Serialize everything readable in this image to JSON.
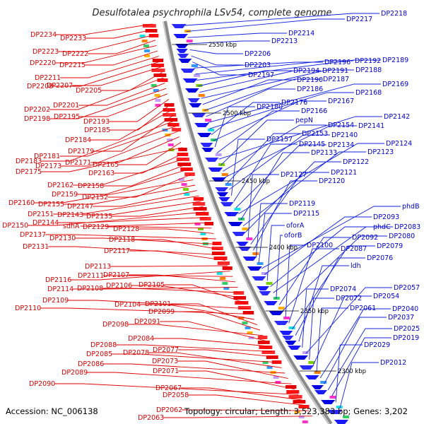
{
  "map": {
    "title": "Desulfotalea psychrophila LSv54, complete genome",
    "accession": "Accession: NC_006138",
    "summary": "Topology: circular; Length: 3,523,383 bp; Genes: 3,202",
    "colors": {
      "forward": "#ff0000",
      "reverse": "#1a1aff",
      "backbone": "#909090",
      "tick": "#2a8a2a"
    },
    "scale_labels": [
      "2550 kbp",
      "2500 kbp",
      "2450 kbp",
      "2400 kbp",
      "2350 kbp",
      "2300 kbp"
    ],
    "left_labels": [
      "DP2234",
      "DP2233",
      "DP2223",
      "DP2222",
      "DP2220",
      "DP2215",
      "DP2211",
      "DP2208",
      "DP2207",
      "DP2205",
      "DP2202",
      "DP2201",
      "DP2198",
      "DP2195",
      "DP2193",
      "DP2185",
      "DP2184",
      "DP2179",
      "DP2183",
      "DP2181",
      "DP2173",
      "DP2171",
      "DP2165",
      "DP2175",
      "DP2163",
      "DP2162",
      "DP2158",
      "DP2159",
      "DP2152",
      "DP2160",
      "DP2155",
      "DP2147",
      "DP2151",
      "DP2143",
      "DP2135",
      "DP2150",
      "DP2144",
      "sdhA",
      "DP2129",
      "DP2128",
      "DP2137",
      "DP2130",
      "DP2118",
      "DP2131",
      "DP2117",
      "DP2113",
      "DP2116",
      "DP2111",
      "DP2107",
      "DP2114",
      "DP2108",
      "DP2106",
      "DP2105",
      "DP2109",
      "DP2110",
      "DP2104",
      "DP2101",
      "DP2099",
      "DP2098",
      "DP2091",
      "DP2084",
      "DP2088",
      "DP2077",
      "DP2085",
      "DP2078",
      "DP2086",
      "DP2073",
      "DP2089",
      "DP2071",
      "DP2090",
      "DP2067",
      "DP2058",
      "DP2062",
      "DP2063"
    ],
    "right_labels": [
      "DP2218",
      "DP2217",
      "DP2214",
      "DP2213",
      "DP2206",
      "DP2203",
      "DP2197",
      "DP2196",
      "DP2192",
      "DP2189",
      "DP2194",
      "DP2191",
      "DP2188",
      "DP2190",
      "DP2187",
      "DP2186",
      "DP2169",
      "DP2168",
      "DP2176",
      "DP2167",
      "DP2180",
      "DP2166",
      "DP2142",
      "pepN",
      "DP2154",
      "DP2141",
      "DP2153",
      "DP2140",
      "DP2157",
      "DP2145",
      "DP2134",
      "DP2124",
      "DP2133",
      "DP2123",
      "DP2122",
      "DP2127",
      "DP2121",
      "DP2120",
      "DP2119",
      "DP2115",
      "phdB",
      "DP2093",
      "oforA",
      "phdC",
      "DP2083",
      "oforB",
      "DP2092",
      "DP2080",
      "DP2100",
      "DP2087",
      "DP2079",
      "DP2076",
      "ldh",
      "DP2074",
      "DP2057",
      "DP2072",
      "DP2054",
      "DP2061",
      "DP2040",
      "DP2037",
      "DP2025",
      "DP2019",
      "DP2029",
      "DP2012"
    ]
  }
}
